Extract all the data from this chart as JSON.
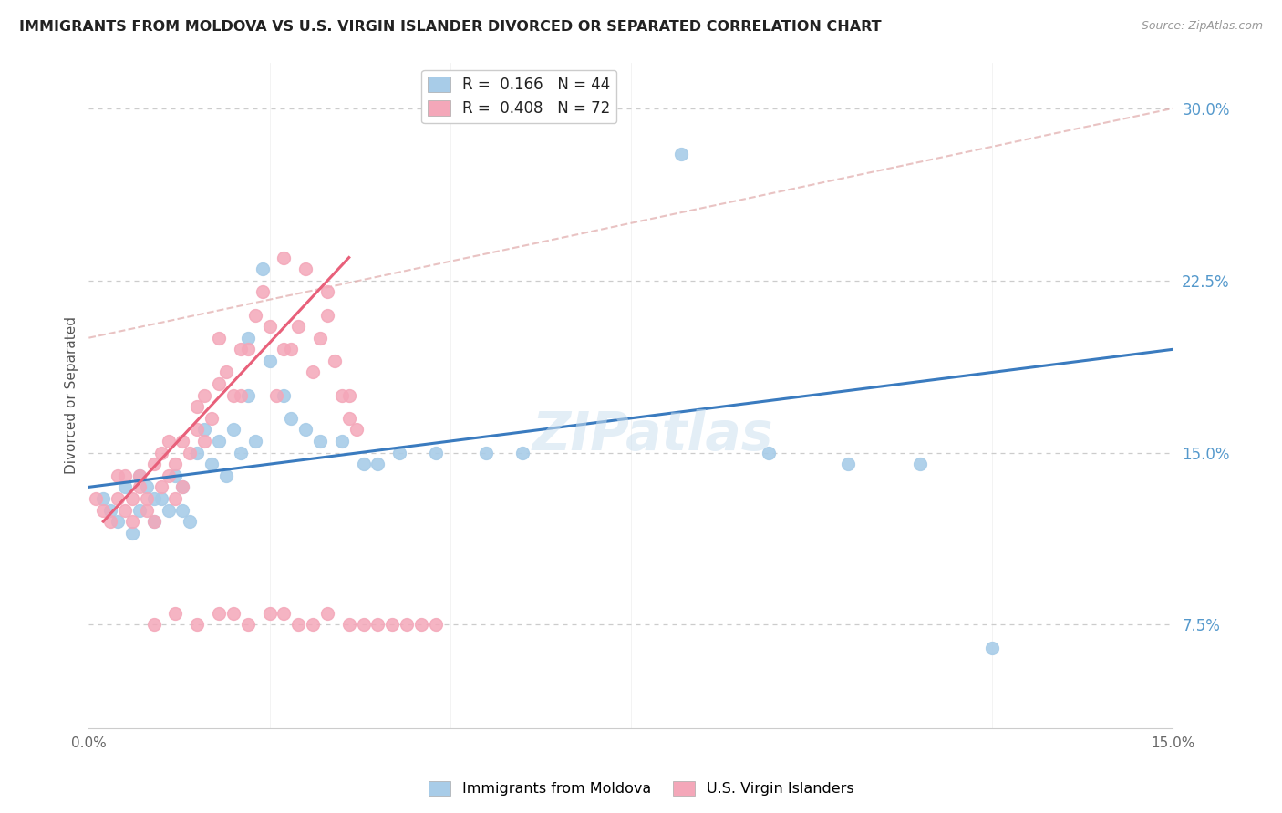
{
  "title": "IMMIGRANTS FROM MOLDOVA VS U.S. VIRGIN ISLANDER DIVORCED OR SEPARATED CORRELATION CHART",
  "source": "Source: ZipAtlas.com",
  "ylabel": "Divorced or Separated",
  "xlim": [
    0.0,
    0.15
  ],
  "ylim": [
    0.03,
    0.32
  ],
  "yticks": [
    0.075,
    0.15,
    0.225,
    0.3
  ],
  "ytick_labels": [
    "7.5%",
    "15.0%",
    "22.5%",
    "30.0%"
  ],
  "legend_R1": "R =  0.166",
  "legend_N1": "N = 44",
  "legend_R2": "R =  0.408",
  "legend_N2": "N = 72",
  "color_blue": "#a8cce8",
  "color_blue_fill": "#a8cce8",
  "color_pink": "#f4a7b9",
  "color_pink_fill": "#f4a7b9",
  "color_blue_line": "#3a7bbf",
  "color_pink_line": "#e8607a",
  "color_dashed_line": "#e0aaaa",
  "watermark": "ZIPatlas",
  "blue_x": [
    0.002,
    0.003,
    0.004,
    0.005,
    0.006,
    0.007,
    0.007,
    0.008,
    0.009,
    0.009,
    0.01,
    0.011,
    0.012,
    0.013,
    0.013,
    0.014,
    0.015,
    0.016,
    0.017,
    0.018,
    0.019,
    0.02,
    0.021,
    0.022,
    0.022,
    0.023,
    0.024,
    0.025,
    0.027,
    0.028,
    0.03,
    0.032,
    0.035,
    0.038,
    0.04,
    0.043,
    0.048,
    0.055,
    0.06,
    0.082,
    0.094,
    0.105,
    0.115,
    0.125
  ],
  "blue_y": [
    0.13,
    0.125,
    0.12,
    0.135,
    0.115,
    0.14,
    0.125,
    0.135,
    0.12,
    0.13,
    0.13,
    0.125,
    0.14,
    0.125,
    0.135,
    0.12,
    0.15,
    0.16,
    0.145,
    0.155,
    0.14,
    0.16,
    0.15,
    0.2,
    0.175,
    0.155,
    0.23,
    0.19,
    0.175,
    0.165,
    0.16,
    0.155,
    0.155,
    0.145,
    0.145,
    0.15,
    0.15,
    0.15,
    0.15,
    0.28,
    0.15,
    0.145,
    0.145,
    0.065
  ],
  "pink_x": [
    0.001,
    0.002,
    0.003,
    0.004,
    0.004,
    0.005,
    0.005,
    0.006,
    0.006,
    0.007,
    0.007,
    0.008,
    0.008,
    0.009,
    0.009,
    0.01,
    0.01,
    0.011,
    0.011,
    0.012,
    0.012,
    0.013,
    0.013,
    0.014,
    0.015,
    0.015,
    0.016,
    0.016,
    0.017,
    0.018,
    0.018,
    0.019,
    0.02,
    0.021,
    0.021,
    0.022,
    0.023,
    0.024,
    0.025,
    0.026,
    0.027,
    0.027,
    0.028,
    0.029,
    0.03,
    0.031,
    0.032,
    0.033,
    0.033,
    0.034,
    0.035,
    0.036,
    0.036,
    0.037,
    0.009,
    0.012,
    0.015,
    0.018,
    0.02,
    0.022,
    0.025,
    0.027,
    0.029,
    0.031,
    0.033,
    0.036,
    0.038,
    0.04,
    0.042,
    0.044,
    0.046,
    0.048
  ],
  "pink_y": [
    0.13,
    0.125,
    0.12,
    0.13,
    0.14,
    0.125,
    0.14,
    0.13,
    0.12,
    0.135,
    0.14,
    0.125,
    0.13,
    0.145,
    0.12,
    0.135,
    0.15,
    0.14,
    0.155,
    0.13,
    0.145,
    0.135,
    0.155,
    0.15,
    0.16,
    0.17,
    0.155,
    0.175,
    0.165,
    0.2,
    0.18,
    0.185,
    0.175,
    0.195,
    0.175,
    0.195,
    0.21,
    0.22,
    0.205,
    0.175,
    0.235,
    0.195,
    0.195,
    0.205,
    0.23,
    0.185,
    0.2,
    0.21,
    0.22,
    0.19,
    0.175,
    0.165,
    0.175,
    0.16,
    0.075,
    0.08,
    0.075,
    0.08,
    0.08,
    0.075,
    0.08,
    0.08,
    0.075,
    0.075,
    0.08,
    0.075,
    0.075,
    0.075,
    0.075,
    0.075,
    0.075,
    0.075
  ],
  "blue_line_x": [
    0.0,
    0.15
  ],
  "blue_line_y": [
    0.135,
    0.195
  ],
  "pink_line_x": [
    0.002,
    0.036
  ],
  "pink_line_y": [
    0.12,
    0.235
  ],
  "dash_line_x": [
    0.0,
    0.15
  ],
  "dash_line_y": [
    0.2,
    0.3
  ]
}
